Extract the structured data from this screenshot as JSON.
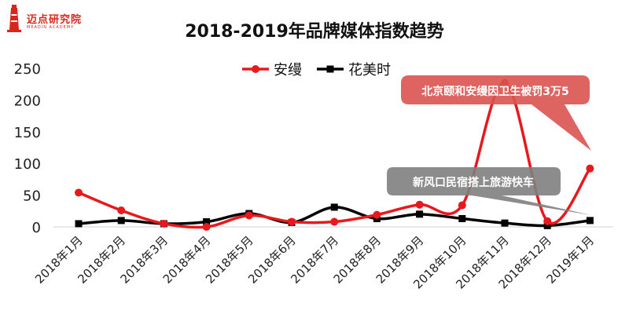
{
  "logo": {
    "name": "迈点研究院",
    "sub": "MEADIN ACADEMY"
  },
  "chart_data": {
    "type": "line",
    "title": "2018-2019年品牌媒体指数趋势",
    "categories": [
      "2018年1月",
      "2018年2月",
      "2018年3月",
      "2018年4月",
      "2018年5月",
      "2018年6月",
      "2018年7月",
      "2018年8月",
      "2018年9月",
      "2018年10月",
      "2018年11月",
      "2018年12月",
      "2019年1月"
    ],
    "ylim": [
      0,
      250
    ],
    "yticks": [
      0,
      50,
      100,
      150,
      200,
      250
    ],
    "grid": false,
    "legend": "top-center",
    "series": [
      {
        "name": "安缦",
        "color": "#e8191c",
        "marker": "circle",
        "values": [
          54,
          26,
          5,
          0,
          18,
          8,
          8,
          19,
          35,
          34,
          227,
          9,
          92
        ]
      },
      {
        "name": "花美时",
        "color": "#000000",
        "marker": "square",
        "values": [
          5,
          10,
          5,
          8,
          21,
          7,
          31,
          13,
          20,
          13,
          6,
          2,
          10
        ]
      }
    ],
    "annotations": [
      {
        "text": "北京颐和安缦因卫生被罚3万5",
        "color": "#d9534f",
        "target_category": "2019年1月",
        "target_series": "安缦"
      },
      {
        "text": "新风口民宿搭上旅游快车",
        "color": "#7f7f7f",
        "target_category": "2019年1月",
        "target_series": "花美时"
      }
    ]
  }
}
